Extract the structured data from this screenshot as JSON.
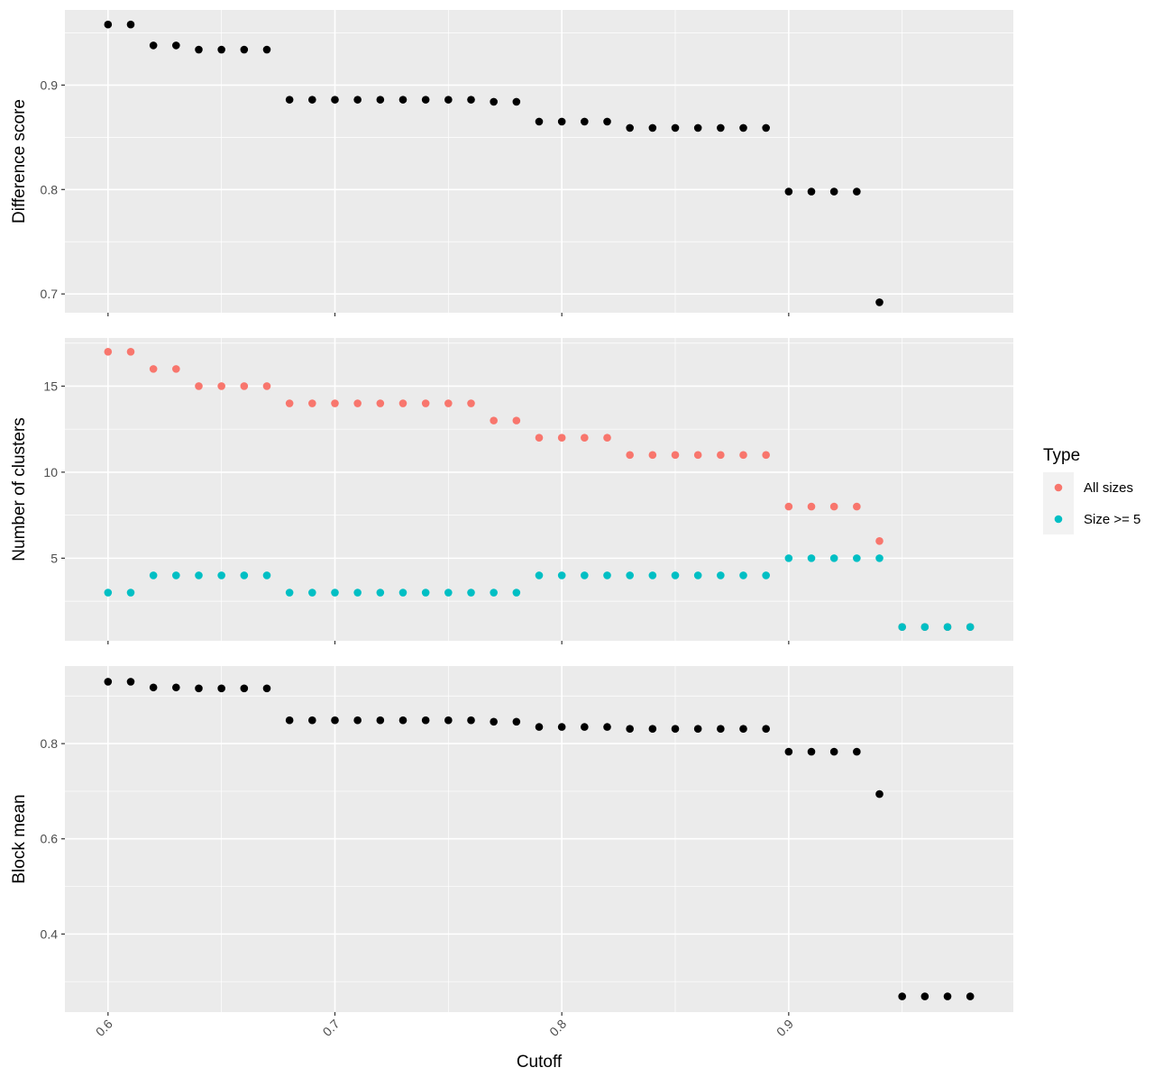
{
  "chart_data": {
    "type": "scatter",
    "facets": [
      {
        "id": "difference-score",
        "ylabel": "Difference score",
        "ylim": [
          0.682,
          0.972
        ],
        "yticks": [
          0.7,
          0.8,
          0.9
        ],
        "yticklabels": [
          "0.7",
          "0.8",
          "0.9"
        ],
        "series": [
          {
            "color": "#000000",
            "x": [
              0.6,
              0.61,
              0.62,
              0.63,
              0.64,
              0.65,
              0.66,
              0.67,
              0.68,
              0.69,
              0.7,
              0.71,
              0.72,
              0.73,
              0.74,
              0.75,
              0.76,
              0.77,
              0.78,
              0.79,
              0.8,
              0.81,
              0.82,
              0.83,
              0.84,
              0.85,
              0.86,
              0.87,
              0.88,
              0.89,
              0.9,
              0.91,
              0.92,
              0.93,
              0.94
            ],
            "y": [
              0.958,
              0.958,
              0.938,
              0.938,
              0.934,
              0.934,
              0.934,
              0.934,
              0.886,
              0.886,
              0.886,
              0.886,
              0.886,
              0.886,
              0.886,
              0.886,
              0.886,
              0.884,
              0.884,
              0.865,
              0.865,
              0.865,
              0.865,
              0.859,
              0.859,
              0.859,
              0.859,
              0.859,
              0.859,
              0.859,
              0.798,
              0.798,
              0.798,
              0.798,
              0.692
            ]
          }
        ]
      },
      {
        "id": "number-of-clusters",
        "ylabel": "Number of clusters",
        "ylim": [
          0.2,
          17.8
        ],
        "yticks": [
          5,
          10,
          15
        ],
        "yticklabels": [
          "5",
          "10",
          "15"
        ],
        "series": [
          {
            "name": "All sizes",
            "color": "#F8766D",
            "x": [
              0.6,
              0.61,
              0.62,
              0.63,
              0.64,
              0.65,
              0.66,
              0.67,
              0.68,
              0.69,
              0.7,
              0.71,
              0.72,
              0.73,
              0.74,
              0.75,
              0.76,
              0.77,
              0.78,
              0.79,
              0.8,
              0.81,
              0.82,
              0.83,
              0.84,
              0.85,
              0.86,
              0.87,
              0.88,
              0.89,
              0.9,
              0.91,
              0.92,
              0.93,
              0.94,
              0.95,
              0.96,
              0.97,
              0.98
            ],
            "y": [
              17,
              17,
              16,
              16,
              15,
              15,
              15,
              15,
              14,
              14,
              14,
              14,
              14,
              14,
              14,
              14,
              14,
              13,
              13,
              12,
              12,
              12,
              12,
              11,
              11,
              11,
              11,
              11,
              11,
              11,
              8,
              8,
              8,
              8,
              6,
              1,
              1,
              1,
              1
            ]
          },
          {
            "name": "Size >= 5",
            "color": "#00BFC4",
            "x": [
              0.6,
              0.61,
              0.62,
              0.63,
              0.64,
              0.65,
              0.66,
              0.67,
              0.68,
              0.69,
              0.7,
              0.71,
              0.72,
              0.73,
              0.74,
              0.75,
              0.76,
              0.77,
              0.78,
              0.79,
              0.8,
              0.81,
              0.82,
              0.83,
              0.84,
              0.85,
              0.86,
              0.87,
              0.88,
              0.89,
              0.9,
              0.91,
              0.92,
              0.93,
              0.94,
              0.95,
              0.96,
              0.97,
              0.98
            ],
            "y": [
              3,
              3,
              4,
              4,
              4,
              4,
              4,
              4,
              3,
              3,
              3,
              3,
              3,
              3,
              3,
              3,
              3,
              3,
              3,
              4,
              4,
              4,
              4,
              4,
              4,
              4,
              4,
              4,
              4,
              4,
              5,
              5,
              5,
              5,
              5,
              1,
              1,
              1,
              1
            ]
          }
        ]
      },
      {
        "id": "block-mean",
        "ylabel": "Block mean",
        "ylim": [
          0.236,
          0.963
        ],
        "yticks": [
          0.4,
          0.6,
          0.8
        ],
        "yticklabels": [
          "0.4",
          "0.6",
          "0.8"
        ],
        "series": [
          {
            "color": "#000000",
            "x": [
              0.6,
              0.61,
              0.62,
              0.63,
              0.64,
              0.65,
              0.66,
              0.67,
              0.68,
              0.69,
              0.7,
              0.71,
              0.72,
              0.73,
              0.74,
              0.75,
              0.76,
              0.77,
              0.78,
              0.79,
              0.8,
              0.81,
              0.82,
              0.83,
              0.84,
              0.85,
              0.86,
              0.87,
              0.88,
              0.89,
              0.9,
              0.91,
              0.92,
              0.93,
              0.94,
              0.95,
              0.96,
              0.97,
              0.98
            ],
            "y": [
              0.93,
              0.93,
              0.918,
              0.918,
              0.916,
              0.916,
              0.916,
              0.916,
              0.849,
              0.849,
              0.849,
              0.849,
              0.849,
              0.849,
              0.849,
              0.849,
              0.849,
              0.846,
              0.846,
              0.835,
              0.835,
              0.835,
              0.835,
              0.831,
              0.831,
              0.831,
              0.831,
              0.831,
              0.831,
              0.831,
              0.783,
              0.783,
              0.783,
              0.783,
              0.694,
              0.269,
              0.269,
              0.269,
              0.269
            ]
          }
        ]
      }
    ],
    "xlabel": "Cutoff",
    "xlim": [
      0.581,
      0.999
    ],
    "xticks": [
      0.6,
      0.7,
      0.8,
      0.9
    ],
    "xticklabels": [
      "0.6",
      "0.7",
      "0.8",
      "0.9"
    ],
    "legend": {
      "title": "Type",
      "position": "right",
      "entries": [
        {
          "label": "All sizes",
          "color": "#F8766D"
        },
        {
          "label": "Size >= 5",
          "color": "#00BFC4"
        }
      ]
    },
    "grid": true,
    "panel_background": "#EBEBEB",
    "grid_color": "#FFFFFF"
  }
}
